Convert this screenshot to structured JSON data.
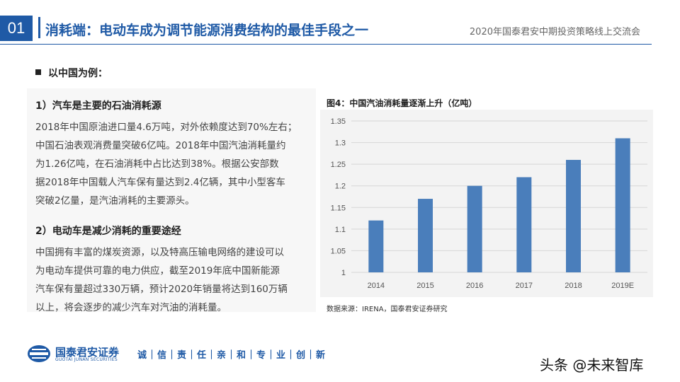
{
  "header": {
    "number": "01",
    "title": "消耗端：电动车成为调节能源消费结构的最佳手段之一",
    "conference": "2020年国泰君安中期投资策略线上交流会"
  },
  "intro": "以中国为例：",
  "sections": [
    {
      "heading": "1）汽车是主要的石油消耗源",
      "lines": [
        "2018年中国原油进口量4.6万吨，对外依赖度达到70%左右；",
        "中国石油表观消费量突破6亿吨。2018年中国汽油消耗量约",
        "为1.26亿吨，在石油消耗中占比达到38%。根据公安部数",
        "据2018年中国载人汽车保有量达到2.4亿辆，其中小型客车",
        "突破2亿量，是汽油消耗的主要源头。"
      ]
    },
    {
      "heading": "2）电动车是减少消耗的重要途经",
      "lines": [
        "中国拥有丰富的煤炭资源，以及特高压输电网络的建设可以",
        "为电动车提供可靠的电力供应，截至2019年底中国新能源",
        "汽车保有量超过330万辆，预计2020年销量将达到160万辆",
        "以上，将会逐步的减少汽车对汽油的消耗量。"
      ]
    }
  ],
  "chart_data": {
    "type": "bar",
    "title": "图4：中国汽油消耗量逐渐上升（亿吨）",
    "categories": [
      "2014",
      "2015",
      "2016",
      "2017",
      "2018",
      "2019E"
    ],
    "values": [
      1.12,
      1.17,
      1.2,
      1.22,
      1.26,
      1.31
    ],
    "ylim": [
      1,
      1.35
    ],
    "yticks": [
      "1",
      "1.05",
      "1.1",
      "1.15",
      "1.2",
      "1.25",
      "1.3",
      "1.35"
    ],
    "grid": true,
    "bar_color": "#4a7ebb",
    "source": "数据来源：IRENA，国泰君安证券研究"
  },
  "footer": {
    "logo_cn": "国泰君安证券",
    "logo_en": "GUOTAI JUNAN SECURITIES",
    "slogan": "诚｜信｜责｜任｜亲｜和｜专｜业｜创｜新",
    "watermark": "头条 @未来智库"
  },
  "colors": {
    "brand": "#1f5aa6"
  }
}
